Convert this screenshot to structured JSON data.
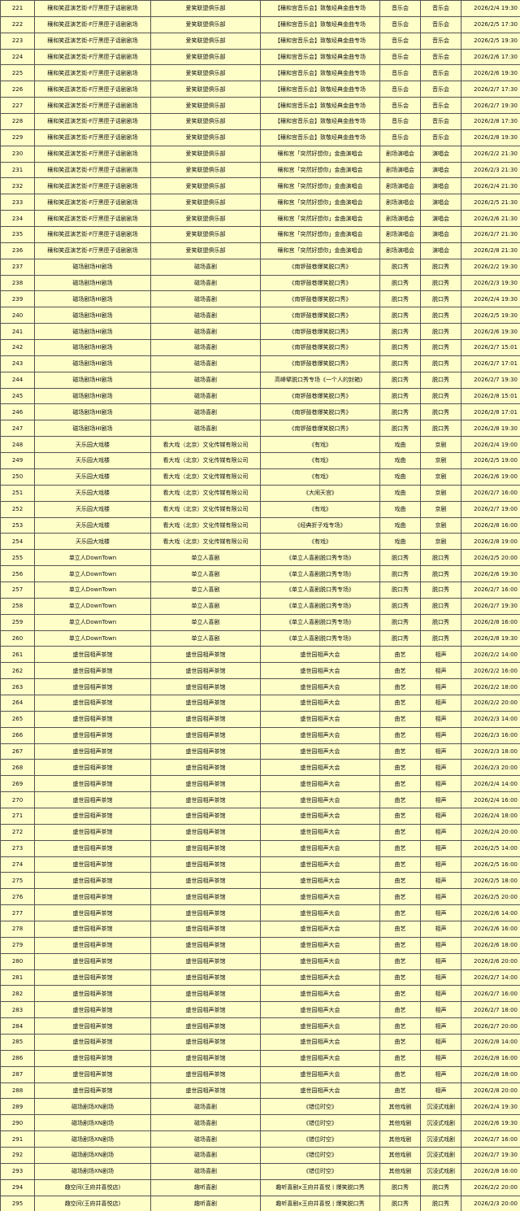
{
  "table": {
    "rows": [
      [
        "221",
        "穰和笑逛演艺街-F厅黑匣子话剧剧场",
        "爱笑联盟俱乐部",
        "【穰和宫音乐会】致敬经典金曲专场",
        "音乐会",
        "音乐会",
        "2026/2/4 19:30"
      ],
      [
        "222",
        "穰和笑逛演艺街-F厅黑匣子话剧剧场",
        "爱笑联盟俱乐部",
        "【穰和宫音乐会】致敬经典金曲专场",
        "音乐会",
        "音乐会",
        "2026/2/5 17:30"
      ],
      [
        "223",
        "穰和笑逛演艺街-F厅黑匣子话剧剧场",
        "爱笑联盟俱乐部",
        "【穰和宫音乐会】致敬经典金曲专场",
        "音乐会",
        "音乐会",
        "2026/2/5 19:30"
      ],
      [
        "224",
        "穰和笑逛演艺街-F厅黑匣子话剧剧场",
        "爱笑联盟俱乐部",
        "【穰和宫音乐会】致敬经典金曲专场",
        "音乐会",
        "音乐会",
        "2026/2/6 17:30"
      ],
      [
        "225",
        "穰和笑逛演艺街-F厅黑匣子话剧剧场",
        "爱笑联盟俱乐部",
        "【穰和宫音乐会】致敬经典金曲专场",
        "音乐会",
        "音乐会",
        "2026/2/6 19:30"
      ],
      [
        "226",
        "穰和笑逛演艺街-F厅黑匣子话剧剧场",
        "爱笑联盟俱乐部",
        "【穰和宫音乐会】致敬经典金曲专场",
        "音乐会",
        "音乐会",
        "2026/2/7 17:30"
      ],
      [
        "227",
        "穰和笑逛演艺街-F厅黑匣子话剧剧场",
        "爱笑联盟俱乐部",
        "【穰和宫音乐会】致敬经典金曲专场",
        "音乐会",
        "音乐会",
        "2026/2/7 19:30"
      ],
      [
        "228",
        "穰和笑逛演艺街-F厅黑匣子话剧剧场",
        "爱笑联盟俱乐部",
        "【穰和宫音乐会】致敬经典金曲专场",
        "音乐会",
        "音乐会",
        "2026/2/8 17:30"
      ],
      [
        "229",
        "穰和笑逛演艺街-F厅黑匣子话剧剧场",
        "爱笑联盟俱乐部",
        "【穰和宫音乐会】致敬经典金曲专场",
        "音乐会",
        "音乐会",
        "2026/2/8 19:30"
      ],
      [
        "230",
        "穰和笑逛演艺街-F厅黑匣子话剧剧场",
        "爱笑联盟俱乐部",
        "穰和宫「突然好想你」金曲演唱会",
        "剧场演唱会",
        "演唱会",
        "2026/2/2 21:30"
      ],
      [
        "231",
        "穰和笑逛演艺街-F厅黑匣子话剧剧场",
        "爱笑联盟俱乐部",
        "穰和宫「突然好想你」金曲演唱会",
        "剧场演唱会",
        "演唱会",
        "2026/2/3 21:30"
      ],
      [
        "232",
        "穰和笑逛演艺街-F厅黑匣子话剧剧场",
        "爱笑联盟俱乐部",
        "穰和宫「突然好想你」金曲演唱会",
        "剧场演唱会",
        "演唱会",
        "2026/2/4 21:30"
      ],
      [
        "233",
        "穰和笑逛演艺街-F厅黑匣子话剧剧场",
        "爱笑联盟俱乐部",
        "穰和宫「突然好想你」金曲演唱会",
        "剧场演唱会",
        "演唱会",
        "2026/2/5 21:30"
      ],
      [
        "234",
        "穰和笑逛演艺街-F厅黑匣子话剧剧场",
        "爱笑联盟俱乐部",
        "穰和宫「突然好想你」金曲演唱会",
        "剧场演唱会",
        "演唱会",
        "2026/2/6 21:30"
      ],
      [
        "235",
        "穰和笑逛演艺街-F厅黑匣子话剧剧场",
        "爱笑联盟俱乐部",
        "穰和宫「突然好想你」金曲演唱会",
        "剧场演唱会",
        "演唱会",
        "2026/2/7 21:30"
      ],
      [
        "236",
        "穰和笑逛演艺街-F厅黑匣子话剧剧场",
        "爱笑联盟俱乐部",
        "穰和宫「突然好想你」金曲演唱会",
        "剧场演唱会",
        "演唱会",
        "2026/2/8 21:30"
      ],
      [
        "237",
        "磁场剧场HI剧场",
        "磁场喜剧",
        "《南锣鼓巷爆笑脱口秀》",
        "脱口秀",
        "脱口秀",
        "2026/2/2 19:30"
      ],
      [
        "238",
        "磁场剧场HI剧场",
        "磁场喜剧",
        "《南锣鼓巷爆笑脱口秀》",
        "脱口秀",
        "脱口秀",
        "2026/2/3 19:30"
      ],
      [
        "239",
        "磁场剧场HI剧场",
        "磁场喜剧",
        "《南锣鼓巷爆笑脱口秀》",
        "脱口秀",
        "脱口秀",
        "2026/2/4 19:30"
      ],
      [
        "240",
        "磁场剧场HI剧场",
        "磁场喜剧",
        "《南锣鼓巷爆笑脱口秀》",
        "脱口秀",
        "脱口秀",
        "2026/2/5 19:30"
      ],
      [
        "241",
        "磁场剧场HI剧场",
        "磁场喜剧",
        "《南锣鼓巷爆笑脱口秀》",
        "脱口秀",
        "脱口秀",
        "2026/2/6 19:30"
      ],
      [
        "242",
        "磁场剧场HI剧场",
        "磁场喜剧",
        "《南锣鼓巷爆笑脱口秀》",
        "脱口秀",
        "脱口秀",
        "2026/2/7 15:01"
      ],
      [
        "243",
        "磁场剧场HI剧场",
        "磁场喜剧",
        "《南锣鼓巷爆笑脱口秀》",
        "脱口秀",
        "脱口秀",
        "2026/2/7 17:01"
      ],
      [
        "244",
        "磁场剧场HI剧场",
        "磁场喜剧",
        "高峰擘脱口秀专场《一个人的封箱》",
        "脱口秀",
        "脱口秀",
        "2026/2/7 19:30"
      ],
      [
        "245",
        "磁场剧场HI剧场",
        "磁场喜剧",
        "《南锣鼓巷爆笑脱口秀》",
        "脱口秀",
        "脱口秀",
        "2026/2/8 15:01"
      ],
      [
        "246",
        "磁场剧场HI剧场",
        "磁场喜剧",
        "《南锣鼓巷爆笑脱口秀》",
        "脱口秀",
        "脱口秀",
        "2026/2/8 17:01"
      ],
      [
        "247",
        "磁场剧场HI剧场",
        "磁场喜剧",
        "《南锣鼓巷爆笑脱口秀》",
        "脱口秀",
        "脱口秀",
        "2026/2/8 19:30"
      ],
      [
        "248",
        "天乐园大戏楼",
        "看大戏（北京）文化传媒有限公司",
        "《有戏》",
        "戏曲",
        "京剧",
        "2026/2/4 19:00"
      ],
      [
        "249",
        "天乐园大戏楼",
        "看大戏（北京）文化传媒有限公司",
        "《有戏》",
        "戏曲",
        "京剧",
        "2026/2/5 19:00"
      ],
      [
        "250",
        "天乐园大戏楼",
        "看大戏（北京）文化传媒有限公司",
        "《有戏》",
        "戏曲",
        "京剧",
        "2026/2/6 19:00"
      ],
      [
        "251",
        "天乐园大戏楼",
        "看大戏（北京）文化传媒有限公司",
        "《大闹天宫》",
        "戏曲",
        "京剧",
        "2026/2/7 16:00"
      ],
      [
        "252",
        "天乐园大戏楼",
        "看大戏（北京）文化传媒有限公司",
        "《有戏》",
        "戏曲",
        "京剧",
        "2026/2/7 19:00"
      ],
      [
        "253",
        "天乐园大戏楼",
        "看大戏（北京）文化传媒有限公司",
        "《经典折子戏专场》",
        "戏曲",
        "京剧",
        "2026/2/8 16:00"
      ],
      [
        "254",
        "天乐园大戏楼",
        "看大戏（北京）文化传媒有限公司",
        "《有戏》",
        "戏曲",
        "京剧",
        "2026/2/8 19:00"
      ],
      [
        "255",
        "单立人DownTown",
        "单立人喜剧",
        "《单立人喜剧脱口秀专场》",
        "脱口秀",
        "脱口秀",
        "2026/2/5 20:00"
      ],
      [
        "256",
        "单立人DownTown",
        "单立人喜剧",
        "《单立人喜剧脱口秀专场》",
        "脱口秀",
        "脱口秀",
        "2026/2/6 19:30"
      ],
      [
        "257",
        "单立人DownTown",
        "单立人喜剧",
        "《单立人喜剧脱口秀专场》",
        "脱口秀",
        "脱口秀",
        "2026/2/7 16:00"
      ],
      [
        "258",
        "单立人DownTown",
        "单立人喜剧",
        "《单立人喜剧脱口秀专场》",
        "脱口秀",
        "脱口秀",
        "2026/2/7 19:30"
      ],
      [
        "259",
        "单立人DownTown",
        "单立人喜剧",
        "《单立人喜剧脱口秀专场》",
        "脱口秀",
        "脱口秀",
        "2026/2/8 16:00"
      ],
      [
        "260",
        "单立人DownTown",
        "单立人喜剧",
        "《单立人喜剧脱口秀专场》",
        "脱口秀",
        "脱口秀",
        "2026/2/8 19:30"
      ],
      [
        "261",
        "盛世园相声茶馆",
        "盛世园相声茶馆",
        "盛世园相声大会",
        "曲艺",
        "相声",
        "2026/2/2 14:00"
      ],
      [
        "262",
        "盛世园相声茶馆",
        "盛世园相声茶馆",
        "盛世园相声大会",
        "曲艺",
        "相声",
        "2026/2/2 16:00"
      ],
      [
        "263",
        "盛世园相声茶馆",
        "盛世园相声茶馆",
        "盛世园相声大会",
        "曲艺",
        "相声",
        "2026/2/2 18:00"
      ],
      [
        "264",
        "盛世园相声茶馆",
        "盛世园相声茶馆",
        "盛世园相声大会",
        "曲艺",
        "相声",
        "2026/2/2 20:00"
      ],
      [
        "265",
        "盛世园相声茶馆",
        "盛世园相声茶馆",
        "盛世园相声大会",
        "曲艺",
        "相声",
        "2026/2/3 14:00"
      ],
      [
        "266",
        "盛世园相声茶馆",
        "盛世园相声茶馆",
        "盛世园相声大会",
        "曲艺",
        "相声",
        "2026/2/3 16:00"
      ],
      [
        "267",
        "盛世园相声茶馆",
        "盛世园相声茶馆",
        "盛世园相声大会",
        "曲艺",
        "相声",
        "2026/2/3 18:00"
      ],
      [
        "268",
        "盛世园相声茶馆",
        "盛世园相声茶馆",
        "盛世园相声大会",
        "曲艺",
        "相声",
        "2026/2/3 20:00"
      ],
      [
        "269",
        "盛世园相声茶馆",
        "盛世园相声茶馆",
        "盛世园相声大会",
        "曲艺",
        "相声",
        "2026/2/4 14:00"
      ],
      [
        "270",
        "盛世园相声茶馆",
        "盛世园相声茶馆",
        "盛世园相声大会",
        "曲艺",
        "相声",
        "2026/2/4 16:00"
      ],
      [
        "271",
        "盛世园相声茶馆",
        "盛世园相声茶馆",
        "盛世园相声大会",
        "曲艺",
        "相声",
        "2026/2/4 18:00"
      ],
      [
        "272",
        "盛世园相声茶馆",
        "盛世园相声茶馆",
        "盛世园相声大会",
        "曲艺",
        "相声",
        "2026/2/4 20:00"
      ],
      [
        "273",
        "盛世园相声茶馆",
        "盛世园相声茶馆",
        "盛世园相声大会",
        "曲艺",
        "相声",
        "2026/2/5 14:00"
      ],
      [
        "274",
        "盛世园相声茶馆",
        "盛世园相声茶馆",
        "盛世园相声大会",
        "曲艺",
        "相声",
        "2026/2/5 16:00"
      ],
      [
        "275",
        "盛世园相声茶馆",
        "盛世园相声茶馆",
        "盛世园相声大会",
        "曲艺",
        "相声",
        "2026/2/5 18:00"
      ],
      [
        "276",
        "盛世园相声茶馆",
        "盛世园相声茶馆",
        "盛世园相声大会",
        "曲艺",
        "相声",
        "2026/2/5 20:00"
      ],
      [
        "277",
        "盛世园相声茶馆",
        "盛世园相声茶馆",
        "盛世园相声大会",
        "曲艺",
        "相声",
        "2026/2/6 14:00"
      ],
      [
        "278",
        "盛世园相声茶馆",
        "盛世园相声茶馆",
        "盛世园相声大会",
        "曲艺",
        "相声",
        "2026/2/6 16:00"
      ],
      [
        "279",
        "盛世园相声茶馆",
        "盛世园相声茶馆",
        "盛世园相声大会",
        "曲艺",
        "相声",
        "2026/2/6 18:00"
      ],
      [
        "280",
        "盛世园相声茶馆",
        "盛世园相声茶馆",
        "盛世园相声大会",
        "曲艺",
        "相声",
        "2026/2/6 20:00"
      ],
      [
        "281",
        "盛世园相声茶馆",
        "盛世园相声茶馆",
        "盛世园相声大会",
        "曲艺",
        "相声",
        "2026/2/7 14:00"
      ],
      [
        "282",
        "盛世园相声茶馆",
        "盛世园相声茶馆",
        "盛世园相声大会",
        "曲艺",
        "相声",
        "2026/2/7 16:00"
      ],
      [
        "283",
        "盛世园相声茶馆",
        "盛世园相声茶馆",
        "盛世园相声大会",
        "曲艺",
        "相声",
        "2026/2/7 18:00"
      ],
      [
        "284",
        "盛世园相声茶馆",
        "盛世园相声茶馆",
        "盛世园相声大会",
        "曲艺",
        "相声",
        "2026/2/7 20:00"
      ],
      [
        "285",
        "盛世园相声茶馆",
        "盛世园相声茶馆",
        "盛世园相声大会",
        "曲艺",
        "相声",
        "2026/2/8 14:00"
      ],
      [
        "286",
        "盛世园相声茶馆",
        "盛世园相声茶馆",
        "盛世园相声大会",
        "曲艺",
        "相声",
        "2026/2/8 16:00"
      ],
      [
        "287",
        "盛世园相声茶馆",
        "盛世园相声茶馆",
        "盛世园相声大会",
        "曲艺",
        "相声",
        "2026/2/8 18:00"
      ],
      [
        "288",
        "盛世园相声茶馆",
        "盛世园相声茶馆",
        "盛世园相声大会",
        "曲艺",
        "相声",
        "2026/2/8 20:00"
      ],
      [
        "289",
        "磁场剧场XN剧场",
        "磁场喜剧",
        "《错位时空》",
        "其他戏剧",
        "沉浸式戏剧",
        "2026/2/4 19:30"
      ],
      [
        "290",
        "磁场剧场XN剧场",
        "磁场喜剧",
        "《错位时空》",
        "其他戏剧",
        "沉浸式戏剧",
        "2026/2/6 19:30"
      ],
      [
        "291",
        "磁场剧场XN剧场",
        "磁场喜剧",
        "《错位时空》",
        "其他戏剧",
        "沉浸式戏剧",
        "2026/2/7 16:00"
      ],
      [
        "292",
        "磁场剧场XN剧场",
        "磁场喜剧",
        "《错位时空》",
        "其他戏剧",
        "沉浸式戏剧",
        "2026/2/7 19:30"
      ],
      [
        "293",
        "磁场剧场XN剧场",
        "磁场喜剧",
        "《错位时空》",
        "其他戏剧",
        "沉浸式戏剧",
        "2026/2/8 16:00"
      ],
      [
        "294",
        "趣空间(王府井喜悦店)",
        "趣听喜剧",
        "趣听喜剧x王府井喜悦丨爆笑脱口秀",
        "脱口秀",
        "脱口秀",
        "2026/2/2 20:00"
      ],
      [
        "295",
        "趣空间(王府井喜悦店)",
        "趣听喜剧",
        "趣听喜剧x王府井喜悦丨爆笑脱口秀",
        "脱口秀",
        "脱口秀",
        "2026/2/3 20:00"
      ]
    ]
  }
}
